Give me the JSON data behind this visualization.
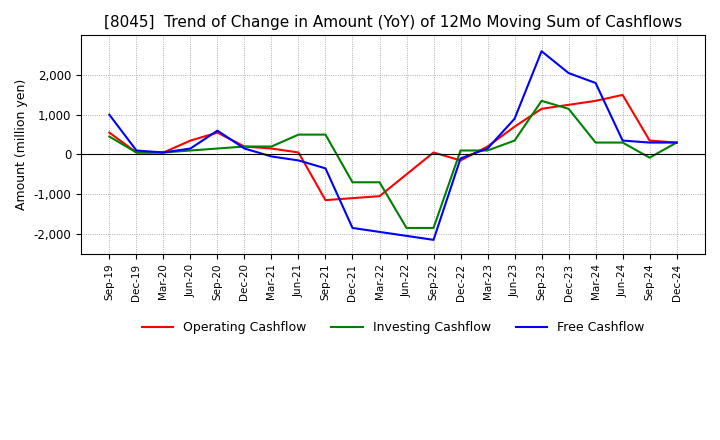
{
  "title": "[8045]  Trend of Change in Amount (YoY) of 12Mo Moving Sum of Cashflows",
  "ylabel": "Amount (million yen)",
  "x_labels": [
    "Sep-19",
    "Dec-19",
    "Mar-20",
    "Jun-20",
    "Sep-20",
    "Dec-20",
    "Mar-21",
    "Jun-21",
    "Sep-21",
    "Dec-21",
    "Mar-22",
    "Jun-22",
    "Sep-22",
    "Dec-22",
    "Mar-23",
    "Jun-23",
    "Sep-23",
    "Dec-23",
    "Mar-24",
    "Jun-24",
    "Sep-24",
    "Dec-24"
  ],
  "operating_cashflow": [
    550,
    50,
    50,
    350,
    550,
    200,
    150,
    50,
    -1150,
    -1100,
    -1050,
    -500,
    50,
    -150,
    200,
    700,
    1150,
    1250,
    1350,
    1500,
    350,
    300
  ],
  "investing_cashflow": [
    450,
    50,
    50,
    100,
    150,
    200,
    200,
    500,
    500,
    -700,
    -700,
    -1850,
    -1850,
    100,
    100,
    350,
    1350,
    1150,
    300,
    300,
    -80,
    300
  ],
  "free_cashflow": [
    1000,
    100,
    50,
    150,
    600,
    150,
    -50,
    -150,
    -350,
    -1850,
    -1950,
    -2050,
    -2150,
    -100,
    150,
    900,
    2600,
    2050,
    1800,
    350,
    300,
    300
  ],
  "operating_color": "#ff0000",
  "investing_color": "#008000",
  "free_color": "#0000ff",
  "ylim": [
    -2500,
    3000
  ],
  "yticks": [
    -2000,
    -1000,
    0,
    1000,
    2000
  ],
  "bg_color": "#ffffff",
  "grid_color": "#999999",
  "title_fontsize": 11,
  "axis_fontsize": 9,
  "legend_fontsize": 9,
  "linewidth": 1.5
}
